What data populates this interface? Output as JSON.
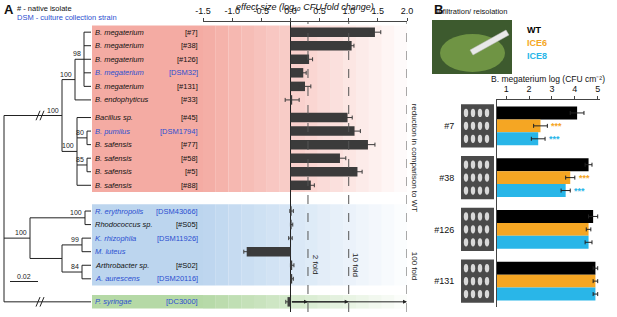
{
  "chart_data": [
    {
      "panel": "A",
      "type": "bar",
      "orientation": "horizontal",
      "title": "effect size (log₁₀ CFU fold change)",
      "categories": [
        "B. megaterium [#7]",
        "B. megaterium [#38]",
        "B. megaterium [#126]",
        "B. megaterium [DSM32]",
        "B. megaterium [#131]",
        "B. endophyticus [#33]",
        "Bacillus sp. [#45]",
        "B. pumilus [DSM1794]",
        "B. safensis [#77]",
        "B. safensis [#58]",
        "B. safensis [#5]",
        "B. safensis [#88]",
        "R. erythropolis [DSM43066]",
        "Rhodococcus sp. [#S05]",
        "K. rhizophila [DSM11926]",
        "M. luteus",
        "Arthrobacter sp. [#S02]",
        "A. aurescens [DSM20116]",
        "P. syringae [DC3000]"
      ],
      "values": [
        1.45,
        1.05,
        0.32,
        0.22,
        0.25,
        0.03,
        0.98,
        1.1,
        1.33,
        0.85,
        1.15,
        0.35,
        0.02,
        0.02,
        0.0,
        -0.75,
        0.03,
        0.03,
        -0.05
      ],
      "errors": [
        0.1,
        0.04,
        0.06,
        0.05,
        0.1,
        0.12,
        0.08,
        0.1,
        0.12,
        0.1,
        0.08,
        0.06,
        0.03,
        0.02,
        0.03,
        0.05,
        0.03,
        0.02,
        0.03
      ],
      "color": "#3b3b3b",
      "xlim": [
        -1.5,
        2.0
      ],
      "xticks": [
        -1.5,
        {
          "value": -1,
          "label": "-1.0"
        },
        -0.5,
        {
          "value": 0,
          "label": "0.0"
        },
        0.5,
        {
          "value": 1,
          "label": "1.0"
        },
        1.5,
        {
          "value": 2,
          "label": "2.0"
        }
      ],
      "grid": false,
      "reference_lines": [
        {
          "value": 0.301,
          "label": "2 fold"
        },
        {
          "value": 1,
          "label": "10 fold"
        },
        {
          "value": 2,
          "label": "100 fold"
        }
      ],
      "annotations": [
        "reduction in comparison to WT"
      ],
      "notes": [
        "# - native isolate",
        "DSM - culture collection strain"
      ],
      "tree": {
        "bootstrap": [
          100,
          98,
          100,
          100,
          80,
          85,
          100,
          100,
          99,
          84
        ],
        "scale_bar": 0.02
      }
    },
    {
      "panel": "B",
      "type": "bar",
      "orientation": "horizontal",
      "title": "B. megaterium log (CFU cm⁻²)",
      "photo_caption": "infiltration/ reisolation",
      "categories": [
        "#7",
        "#38",
        "#126",
        "#131"
      ],
      "series": [
        {
          "name": "WT",
          "color": "#000000",
          "values": [
            4.1,
            4.6,
            4.8,
            4.9
          ],
          "errors": [
            0.3,
            0.15,
            0.2,
            0.1
          ],
          "significance": [
            null,
            null,
            null,
            null
          ]
        },
        {
          "name": "ICE6",
          "color": "#f5a623",
          "values": [
            2.5,
            3.8,
            4.6,
            4.9
          ],
          "errors": [
            0.3,
            0.2,
            0.1,
            0.1
          ],
          "significance": [
            "***",
            "***",
            null,
            null
          ]
        },
        {
          "name": "ICE8",
          "color": "#29b6e8",
          "values": [
            2.4,
            3.6,
            4.6,
            4.9
          ],
          "errors": [
            0.3,
            0.2,
            0.15,
            0.1
          ],
          "significance": [
            "***",
            "***",
            null,
            null
          ]
        }
      ],
      "xlim": [
        0.6,
        5.1
      ],
      "xticks": [
        1,
        2,
        3,
        4,
        5
      ],
      "grid": false
    }
  ]
}
